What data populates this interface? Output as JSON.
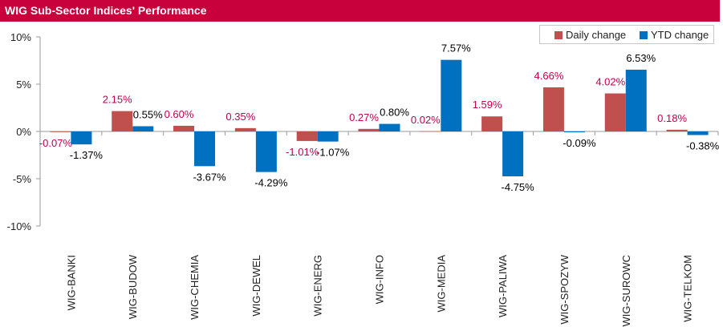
{
  "title": "WIG Sub-Sector Indices' Performance",
  "colors": {
    "title_bar": "#c8003c",
    "daily": "#c0504d",
    "ytd": "#0070c0",
    "daily_label": "#c00050",
    "ytd_label": "#000000"
  },
  "legend": {
    "daily": "Daily change",
    "ytd": "YTD change"
  },
  "chart_data": {
    "type": "bar",
    "title": "WIG Sub-Sector Indices' Performance",
    "categories": [
      "WIG-BANKI",
      "WIG-BUDOW",
      "WIG-CHEMIA",
      "WIG-DEWEL",
      "WIG-ENERG",
      "WIG-INFO",
      "WIG-MEDIA",
      "WIG-PALIWA",
      "WIG-SPOZYW",
      "WIG-SUROWC",
      "WIG-TELKOM"
    ],
    "series": [
      {
        "name": "Daily change",
        "values": [
          -0.07,
          2.15,
          0.6,
          0.35,
          -1.01,
          0.27,
          0.02,
          1.59,
          4.66,
          4.02,
          0.18
        ],
        "labels": [
          "-0.07%",
          "2.15%",
          "0.60%",
          "0.35%",
          "-1.01%",
          "0.27%",
          "0.02%",
          "1.59%",
          "4.66%",
          "4.02%",
          "0.18%"
        ]
      },
      {
        "name": "YTD change",
        "values": [
          -1.37,
          0.55,
          -3.67,
          -4.29,
          -1.07,
          0.8,
          7.57,
          -4.75,
          -0.09,
          6.53,
          -0.38
        ],
        "labels": [
          "-1.37%",
          "0.55%",
          "-3.67%",
          "-4.29%",
          "-1.07%",
          "0.80%",
          "7.57%",
          "-4.75%",
          "-0.09%",
          "6.53%",
          "-0.38%"
        ]
      }
    ],
    "ylim": [
      -10,
      10
    ],
    "yticks": [
      "10%",
      "5%",
      "0%",
      "-5%",
      "-10%"
    ],
    "ytick_values": [
      10,
      5,
      0,
      -5,
      -10
    ],
    "legend_position": "top-right",
    "grid": false
  }
}
